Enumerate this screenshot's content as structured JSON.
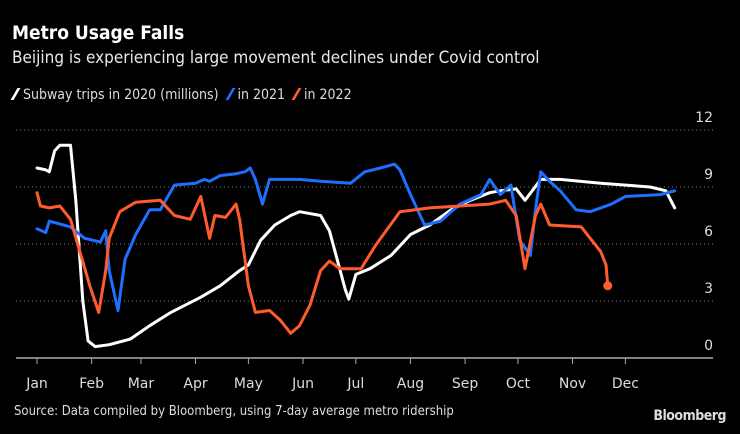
{
  "chart_data": {
    "type": "line",
    "title": "Metro Usage Falls",
    "subtitle": "Beijing is experiencing large movement declines under Covid control",
    "ylabel": "Subway trips (millions)",
    "ylim": [
      0,
      12
    ],
    "yticks": [
      0,
      3,
      6,
      9,
      12
    ],
    "xlim": [
      0,
      365
    ],
    "xticks": [
      {
        "label": "Jan",
        "day": 0
      },
      {
        "label": "Feb",
        "day": 31
      },
      {
        "label": "Mar",
        "day": 59
      },
      {
        "label": "Apr",
        "day": 90
      },
      {
        "label": "May",
        "day": 120
      },
      {
        "label": "Jun",
        "day": 151
      },
      {
        "label": "Jul",
        "day": 181
      },
      {
        "label": "Aug",
        "day": 212
      },
      {
        "label": "Sep",
        "day": 243
      },
      {
        "label": "Oct",
        "day": 273
      },
      {
        "label": "Nov",
        "day": 304
      },
      {
        "label": "Dec",
        "day": 334
      }
    ],
    "grid": true,
    "legend_position": "top-left",
    "legend": [
      "Subway trips in 2020 (millions)",
      "in 2021",
      "in 2022"
    ],
    "series": [
      {
        "name": "2020",
        "color": "#ffffff",
        "points": [
          [
            0,
            10
          ],
          [
            5,
            9.9
          ],
          [
            7,
            9.8
          ],
          [
            10,
            10.9
          ],
          [
            13,
            11.2
          ],
          [
            19,
            11.2
          ],
          [
            22,
            8.3
          ],
          [
            26,
            3
          ],
          [
            29,
            0.9
          ],
          [
            33,
            0.6
          ],
          [
            41,
            0.7
          ],
          [
            53,
            1
          ],
          [
            64,
            1.7
          ],
          [
            76,
            2.4
          ],
          [
            93,
            3.2
          ],
          [
            104,
            3.8
          ],
          [
            115,
            4.6
          ],
          [
            120,
            4.9
          ],
          [
            127,
            6.2
          ],
          [
            135,
            7
          ],
          [
            144,
            7.5
          ],
          [
            149,
            7.7
          ],
          [
            161,
            7.5
          ],
          [
            166,
            6.7
          ],
          [
            175,
            3.6
          ],
          [
            177,
            3.1
          ],
          [
            181,
            4.4
          ],
          [
            189,
            4.7
          ],
          [
            201,
            5.4
          ],
          [
            212,
            6.5
          ],
          [
            223,
            7
          ],
          [
            235,
            7.8
          ],
          [
            246,
            8.3
          ],
          [
            257,
            8.7
          ],
          [
            263,
            8.8
          ],
          [
            272,
            8.9
          ],
          [
            277,
            8.3
          ],
          [
            286,
            9.4
          ],
          [
            297,
            9.4
          ],
          [
            320,
            9.2
          ],
          [
            348,
            9
          ],
          [
            357,
            8.8
          ],
          [
            362,
            7.9
          ]
        ]
      },
      {
        "name": "2021",
        "color": "#1f6fff",
        "points": [
          [
            0,
            6.8
          ],
          [
            5,
            6.6
          ],
          [
            7,
            7.2
          ],
          [
            19,
            6.9
          ],
          [
            27,
            6.3
          ],
          [
            36,
            6.1
          ],
          [
            39,
            6.7
          ],
          [
            41,
            4.6
          ],
          [
            46,
            2.5
          ],
          [
            50,
            5.2
          ],
          [
            56,
            6.5
          ],
          [
            64,
            7.8
          ],
          [
            70,
            7.8
          ],
          [
            78,
            9.1
          ],
          [
            90,
            9.2
          ],
          [
            95,
            9.4
          ],
          [
            98,
            9.3
          ],
          [
            104,
            9.6
          ],
          [
            113,
            9.7
          ],
          [
            118,
            9.8
          ],
          [
            121,
            10
          ],
          [
            124,
            9.4
          ],
          [
            128,
            8.1
          ],
          [
            132,
            9.4
          ],
          [
            149,
            9.4
          ],
          [
            161,
            9.3
          ],
          [
            178,
            9.2
          ],
          [
            186,
            9.8
          ],
          [
            195,
            10
          ],
          [
            203,
            10.2
          ],
          [
            206,
            9.9
          ],
          [
            212,
            8.6
          ],
          [
            220,
            7
          ],
          [
            229,
            7.2
          ],
          [
            240,
            8.1
          ],
          [
            252,
            8.6
          ],
          [
            257,
            9.4
          ],
          [
            263,
            8.6
          ],
          [
            269,
            9.1
          ],
          [
            274,
            6.2
          ],
          [
            280,
            5.4
          ],
          [
            283,
            7.8
          ],
          [
            286,
            9.8
          ],
          [
            291,
            9.3
          ],
          [
            297,
            8.8
          ],
          [
            306,
            7.8
          ],
          [
            314,
            7.7
          ],
          [
            326,
            8.1
          ],
          [
            334,
            8.5
          ],
          [
            354,
            8.6
          ],
          [
            362,
            8.8
          ]
        ]
      },
      {
        "name": "2022",
        "color": "#ff5b2e",
        "end_marker": true,
        "points": [
          [
            0,
            8.7
          ],
          [
            2,
            8
          ],
          [
            7,
            7.9
          ],
          [
            13,
            8
          ],
          [
            19,
            7.3
          ],
          [
            24,
            5.7
          ],
          [
            30,
            3.8
          ],
          [
            35,
            2.4
          ],
          [
            39,
            4.6
          ],
          [
            41,
            6.3
          ],
          [
            47,
            7.7
          ],
          [
            56,
            8.2
          ],
          [
            70,
            8.3
          ],
          [
            78,
            7.5
          ],
          [
            87,
            7.3
          ],
          [
            93,
            8.5
          ],
          [
            98,
            6.3
          ],
          [
            101,
            7.5
          ],
          [
            107,
            7.4
          ],
          [
            113,
            8.1
          ],
          [
            115,
            7.3
          ],
          [
            120,
            3.8
          ],
          [
            124,
            2.4
          ],
          [
            132,
            2.5
          ],
          [
            138,
            2
          ],
          [
            144,
            1.3
          ],
          [
            149,
            1.7
          ],
          [
            155,
            2.8
          ],
          [
            161,
            4.6
          ],
          [
            166,
            5.1
          ],
          [
            172,
            4.7
          ],
          [
            184,
            4.7
          ],
          [
            192,
            5.9
          ],
          [
            206,
            7.7
          ],
          [
            223,
            7.9
          ],
          [
            240,
            8
          ],
          [
            257,
            8.1
          ],
          [
            266,
            8.3
          ],
          [
            272,
            7.5
          ],
          [
            277,
            4.7
          ],
          [
            283,
            7.5
          ],
          [
            286,
            8.1
          ],
          [
            291,
            7
          ],
          [
            309,
            6.9
          ],
          [
            314,
            6.3
          ],
          [
            320,
            5.6
          ],
          [
            323,
            4.9
          ],
          [
            324,
            3.8
          ]
        ]
      }
    ]
  },
  "source": "Source: Data compiled by Bloomberg, using 7-day average metro ridership",
  "brand": "Bloomberg"
}
